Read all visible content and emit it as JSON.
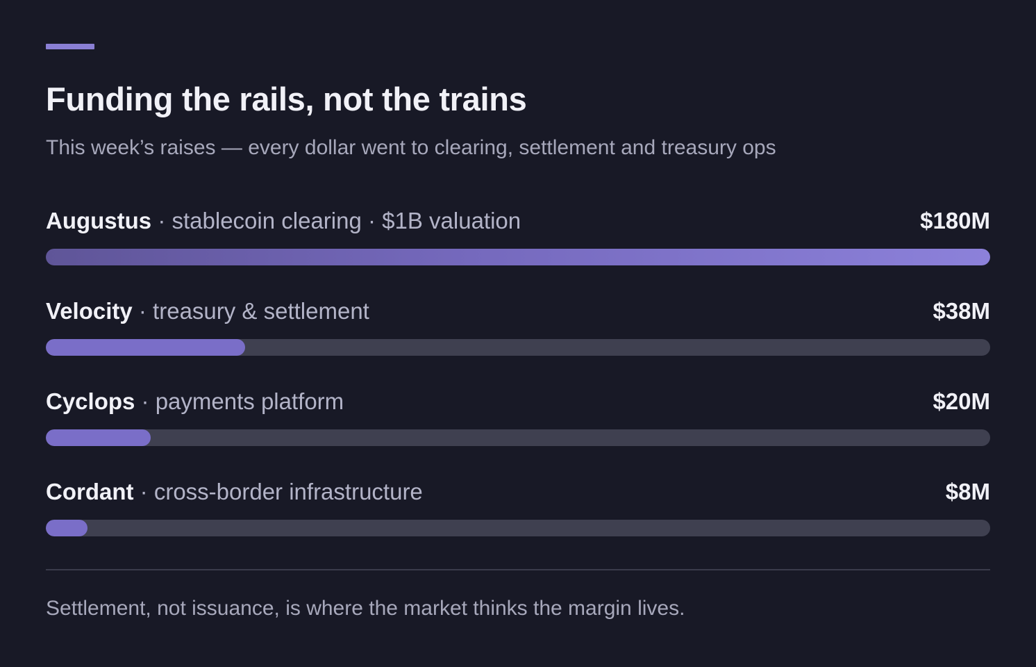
{
  "header": {
    "title": "Funding the rails, not the trains",
    "subtitle": "This week’s raises — every dollar went to clearing, settlement and treasury ops"
  },
  "chart_data": {
    "type": "bar",
    "orientation": "horizontal",
    "title": "Funding the rails, not the trains",
    "subtitle": "This week’s raises — every dollar went to clearing, settlement and treasury ops",
    "unit": "$M",
    "xlim": [
      0,
      180
    ],
    "grid": false,
    "categories": [
      "Augustus",
      "Velocity",
      "Cyclops",
      "Cordant"
    ],
    "values": [
      180,
      38,
      20,
      8
    ],
    "rows": [
      {
        "name": "Augustus",
        "detail": " · stablecoin clearing · $1B valuation",
        "value": 180,
        "value_label": "$180M"
      },
      {
        "name": "Velocity",
        "detail": " · treasury & settlement",
        "value": 38,
        "value_label": "$38M"
      },
      {
        "name": "Cyclops",
        "detail": " · payments platform",
        "value": 20,
        "value_label": "$20M"
      },
      {
        "name": "Cordant",
        "detail": " · cross-border infrastructure",
        "value": 8,
        "value_label": "$8M"
      }
    ]
  },
  "footer": {
    "note": "Settlement, not issuance, is where the market thinks the margin lives."
  },
  "colors": {
    "background": "#181926",
    "accent": "#8a7fd4",
    "bar_fill": "#7a6ec8",
    "bar_fill_top_start": "#5f5598",
    "bar_fill_top_end": "#8c81da",
    "track": "#3f4050",
    "text_primary": "#f1f1f7",
    "text_secondary": "#a7a8bb"
  }
}
